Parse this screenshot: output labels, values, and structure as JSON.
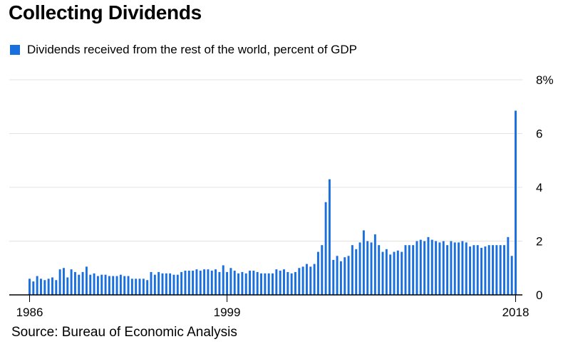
{
  "title": "Collecting Dividends",
  "source": "Source: Bureau of Economic Analysis",
  "colors": {
    "bar": "#1a6fdf",
    "grid": "#e3e3e3",
    "axis": "#000000"
  },
  "chart_data": {
    "type": "bar",
    "title": "Collecting Dividends",
    "xlabel": "",
    "ylabel": "",
    "series": [
      {
        "name": "Dividends received from the rest of the world, percent of GDP",
        "frequency": "quarterly",
        "start": "1986",
        "end": "2018",
        "values": [
          0.6,
          0.5,
          0.7,
          0.6,
          0.55,
          0.6,
          0.65,
          0.55,
          0.95,
          1.0,
          0.65,
          0.95,
          0.85,
          0.75,
          0.85,
          1.05,
          0.75,
          0.8,
          0.7,
          0.75,
          0.75,
          0.7,
          0.7,
          0.7,
          0.75,
          0.7,
          0.7,
          0.6,
          0.6,
          0.6,
          0.6,
          0.55,
          0.85,
          0.75,
          0.85,
          0.8,
          0.8,
          0.8,
          0.75,
          0.75,
          0.85,
          0.9,
          0.9,
          0.9,
          0.95,
          0.9,
          0.95,
          0.95,
          0.9,
          0.95,
          0.85,
          1.1,
          0.85,
          1.0,
          0.9,
          0.8,
          0.85,
          0.8,
          0.9,
          0.9,
          0.85,
          0.8,
          0.8,
          0.8,
          0.8,
          0.95,
          0.9,
          0.95,
          0.85,
          0.8,
          0.85,
          1.0,
          1.05,
          1.15,
          1.05,
          1.15,
          1.6,
          1.85,
          3.45,
          4.3,
          1.3,
          1.45,
          1.25,
          1.4,
          1.45,
          1.85,
          1.7,
          1.95,
          2.4,
          2.0,
          1.95,
          2.25,
          1.85,
          1.6,
          1.7,
          1.5,
          1.6,
          1.65,
          1.6,
          1.85,
          1.85,
          1.85,
          2.0,
          2.05,
          2.0,
          2.15,
          2.05,
          2.0,
          1.95,
          2.0,
          1.85,
          2.0,
          1.95,
          1.95,
          2.0,
          1.95,
          1.8,
          1.85,
          1.85,
          1.75,
          1.8,
          1.85,
          1.85,
          1.85,
          1.85,
          1.85,
          2.15,
          1.45,
          6.85
        ]
      }
    ],
    "x_ticks": [
      "1986",
      "1999",
      "2018"
    ],
    "x_tick_index": [
      0,
      52,
      128
    ],
    "y_ticks": [
      "0",
      "2",
      "4",
      "6",
      "8%"
    ],
    "y_tick_values": [
      0,
      2,
      4,
      6,
      8
    ],
    "ylim": [
      0,
      8
    ],
    "grid": true,
    "y_axis_position": "right",
    "legend_position": "top-left"
  }
}
